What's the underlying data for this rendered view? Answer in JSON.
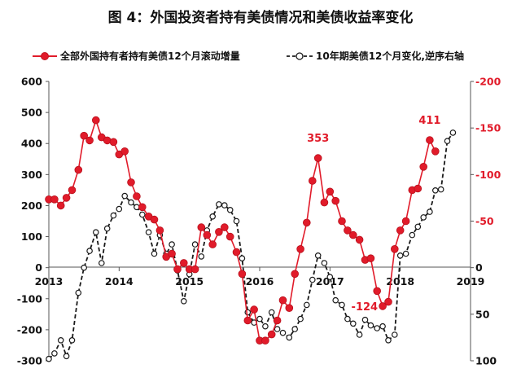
{
  "chart_data": {
    "type": "line",
    "title": "图 4：外国投资者持有美债情况和美债收益率变化",
    "legend_position": "top",
    "x_range": [
      2013.0,
      2019.0
    ],
    "x_ticks": [
      "2013",
      "2014",
      "2015",
      "2016",
      "2017",
      "2018",
      "2019"
    ],
    "left_axis": {
      "min": -300,
      "max": 600,
      "ticks": [
        "-300",
        "-200",
        "-100",
        "0",
        "100",
        "200",
        "300",
        "400",
        "500",
        "600"
      ]
    },
    "right_axis": {
      "min": -200,
      "max": 100,
      "reversed": true,
      "ticks": [
        "-200",
        "-150",
        "-100",
        "-50",
        "0",
        "50",
        "100"
      ]
    },
    "grid": false,
    "colors": {
      "red": "#e11b2a",
      "dark": "#1a1a1a",
      "right_ticks": "#e11b2a"
    },
    "series": [
      {
        "name": "全部外国持有者持有美债12个月滚动增量",
        "axis": "left",
        "style": "solid-red-dots",
        "x": [
          2013.0,
          2013.08,
          2013.17,
          2013.25,
          2013.33,
          2013.42,
          2013.5,
          2013.58,
          2013.67,
          2013.75,
          2013.83,
          2013.92,
          2014.0,
          2014.08,
          2014.17,
          2014.25,
          2014.33,
          2014.42,
          2014.5,
          2014.58,
          2014.67,
          2014.75,
          2014.83,
          2014.92,
          2015.0,
          2015.08,
          2015.17,
          2015.25,
          2015.33,
          2015.42,
          2015.5,
          2015.58,
          2015.67,
          2015.75,
          2015.83,
          2015.92,
          2016.0,
          2016.08,
          2016.17,
          2016.25,
          2016.33,
          2016.42,
          2016.5,
          2016.58,
          2016.67,
          2016.75,
          2016.83,
          2016.92,
          2017.0,
          2017.08,
          2017.17,
          2017.25,
          2017.33,
          2017.42,
          2017.5,
          2017.58,
          2017.67,
          2017.75,
          2017.83,
          2017.92,
          2018.0,
          2018.08,
          2018.17,
          2018.25,
          2018.33,
          2018.42,
          2018.5,
          2018.58,
          2018.67
        ],
        "values": [
          220,
          220,
          200,
          225,
          250,
          315,
          425,
          410,
          475,
          420,
          410,
          405,
          365,
          375,
          275,
          230,
          195,
          165,
          155,
          120,
          35,
          45,
          -5,
          15,
          -5,
          -5,
          130,
          105,
          75,
          115,
          130,
          100,
          50,
          -20,
          -170,
          -135,
          -235,
          -235,
          -215,
          -170,
          -105,
          -130,
          -20,
          60,
          145,
          280,
          353,
          210,
          245,
          215,
          150,
          120,
          105,
          90,
          25,
          30,
          -75,
          -124,
          -110,
          60,
          120,
          150,
          250,
          255,
          325,
          411,
          375,
          null,
          null
        ]
      },
      {
        "name": "10年期美债12个月变化,逆序右轴",
        "axis": "right",
        "style": "dashed-black-hollow-dots",
        "x": [
          2013.0,
          2013.08,
          2013.17,
          2013.25,
          2013.33,
          2013.42,
          2013.5,
          2013.58,
          2013.67,
          2013.75,
          2013.83,
          2013.92,
          2014.0,
          2014.08,
          2014.17,
          2014.25,
          2014.33,
          2014.42,
          2014.5,
          2014.58,
          2014.67,
          2014.75,
          2014.83,
          2014.92,
          2015.0,
          2015.08,
          2015.17,
          2015.25,
          2015.33,
          2015.42,
          2015.5,
          2015.58,
          2015.67,
          2015.75,
          2015.83,
          2015.92,
          2016.0,
          2016.08,
          2016.17,
          2016.25,
          2016.33,
          2016.42,
          2016.5,
          2016.58,
          2016.67,
          2016.75,
          2016.83,
          2016.92,
          2017.0,
          2017.08,
          2017.17,
          2017.25,
          2017.33,
          2017.42,
          2017.5,
          2017.58,
          2017.67,
          2017.75,
          2017.83,
          2017.92,
          2018.0,
          2018.08,
          2018.17,
          2018.25,
          2018.33,
          2018.42,
          2018.5,
          2018.58,
          2018.67,
          2018.75
        ],
        "values": [
          98,
          92,
          78,
          95,
          78,
          27,
          0,
          -18,
          -38,
          -5,
          -42,
          -56,
          -63,
          -77,
          -70,
          -65,
          -57,
          -38,
          -15,
          -35,
          -15,
          -25,
          3,
          36,
          7,
          -25,
          -12,
          -40,
          -55,
          -68,
          -67,
          -62,
          -50,
          -10,
          48,
          59,
          55,
          63,
          48,
          66,
          70,
          75,
          66,
          55,
          40,
          13,
          -13,
          -5,
          10,
          35,
          40,
          55,
          60,
          72,
          56,
          62,
          65,
          63,
          78,
          72,
          -13,
          -15,
          -35,
          -44,
          -54,
          -60,
          -83,
          -84,
          -136,
          -145
        ]
      }
    ],
    "annotations": [
      {
        "text": "353",
        "x": 2016.83,
        "y": 353
      },
      {
        "text": "411",
        "x": 2018.42,
        "y": 411
      },
      {
        "text": "-124",
        "x": 2017.75,
        "y": -124
      }
    ]
  }
}
